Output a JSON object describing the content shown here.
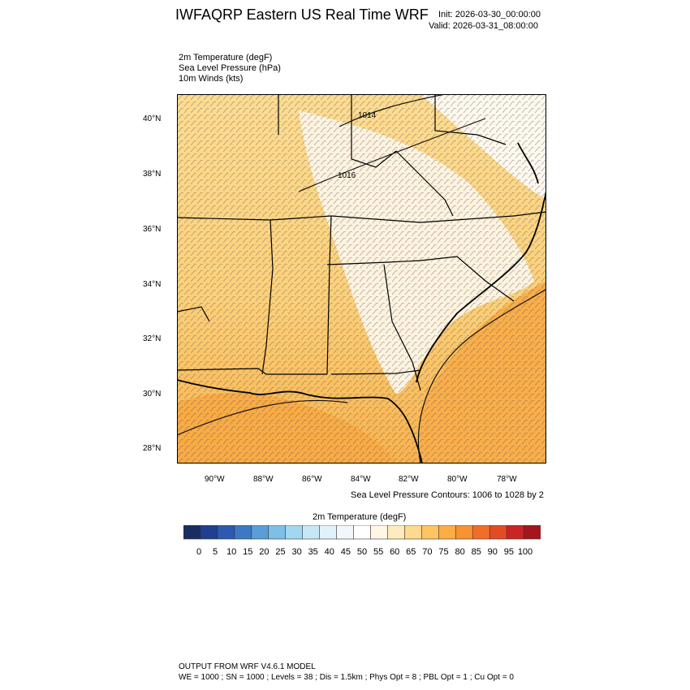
{
  "header": {
    "title": "IWFAQRP Eastern US Real Time WRF",
    "init": "Init: 2026-03-30_00:00:00",
    "valid": "Valid: 2026-03-31_08:00:00"
  },
  "fields": [
    "2m Temperature   (degF)",
    "Sea Level Pressure   (hPa)",
    "10m Winds   (kts)"
  ],
  "map": {
    "lat_labels": [
      "40°N",
      "38°N",
      "36°N",
      "34°N",
      "32°N",
      "30°N",
      "28°N"
    ],
    "lon_labels": [
      "90°W",
      "88°W",
      "86°W",
      "84°W",
      "82°W",
      "80°W",
      "78°W"
    ],
    "isobar_labels": [
      "1014",
      "1016"
    ],
    "colors": {
      "warm_fill": "#fccf74",
      "hot_fill": "#f9a63a",
      "cool_fill": "#fdf6e9",
      "boundary": "#000000"
    }
  },
  "contour_note": "Sea Level Pressure Contours: 1006 to 1028 by 2",
  "colorbar": {
    "title": "2m Temperature  (degF)",
    "labels": [
      "0",
      "5",
      "10",
      "15",
      "20",
      "25",
      "30",
      "35",
      "40",
      "45",
      "50",
      "55",
      "60",
      "65",
      "70",
      "75",
      "80",
      "85",
      "90",
      "95",
      "100"
    ],
    "colors": [
      "#1a2d63",
      "#213f8f",
      "#2b5aae",
      "#3d78c4",
      "#5a9ed7",
      "#7dbfe7",
      "#a3d7f1",
      "#c6e8f6",
      "#e2f2fa",
      "#f1f7fb",
      "#ffffff",
      "#fff6e3",
      "#ffebbd",
      "#fed98e",
      "#fcc462",
      "#fbae45",
      "#f79332",
      "#f16e2a",
      "#e34b27",
      "#c92526",
      "#a4161e"
    ]
  },
  "footer": {
    "line1": "OUTPUT FROM WRF V4.6.1 MODEL",
    "line2": "WE = 1000 ; SN = 1000 ; Levels = 38 ; Dis = 1.5km ; Phys Opt = 8 ; PBL Opt = 1 ; Cu Opt = 0"
  }
}
